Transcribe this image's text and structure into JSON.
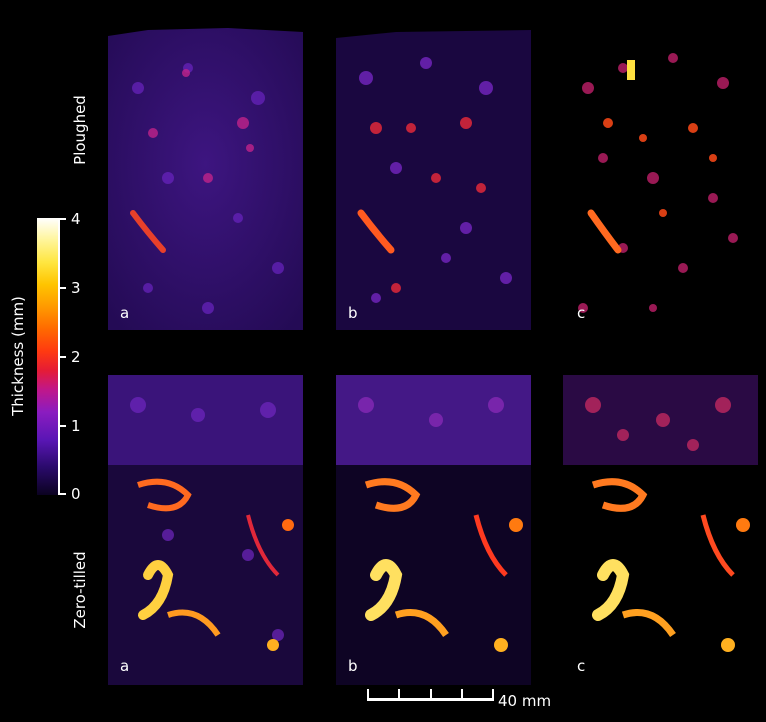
{
  "figure": {
    "rows": [
      {
        "label": "Ploughed",
        "panels": [
          "a",
          "b",
          "c"
        ]
      },
      {
        "label": "Zero-tilled",
        "panels": [
          "a",
          "b",
          "c"
        ]
      }
    ]
  },
  "colorbar": {
    "title": "Thickness (mm)",
    "ticks": [
      "0",
      "1",
      "2",
      "3",
      "4"
    ],
    "min": 0,
    "max": 4,
    "colormap": [
      "#0b0220",
      "#5a16b5",
      "#c0178a",
      "#ff3a10",
      "#ff9a00",
      "#ffe640",
      "#ffffff"
    ]
  },
  "scalebar": {
    "label": "40 mm",
    "divisions": 4
  },
  "colors": {
    "background": "#000000",
    "pore_low": "#4a1a9a",
    "pore_mid": "#e0283a",
    "pore_high": "#ffe060"
  }
}
